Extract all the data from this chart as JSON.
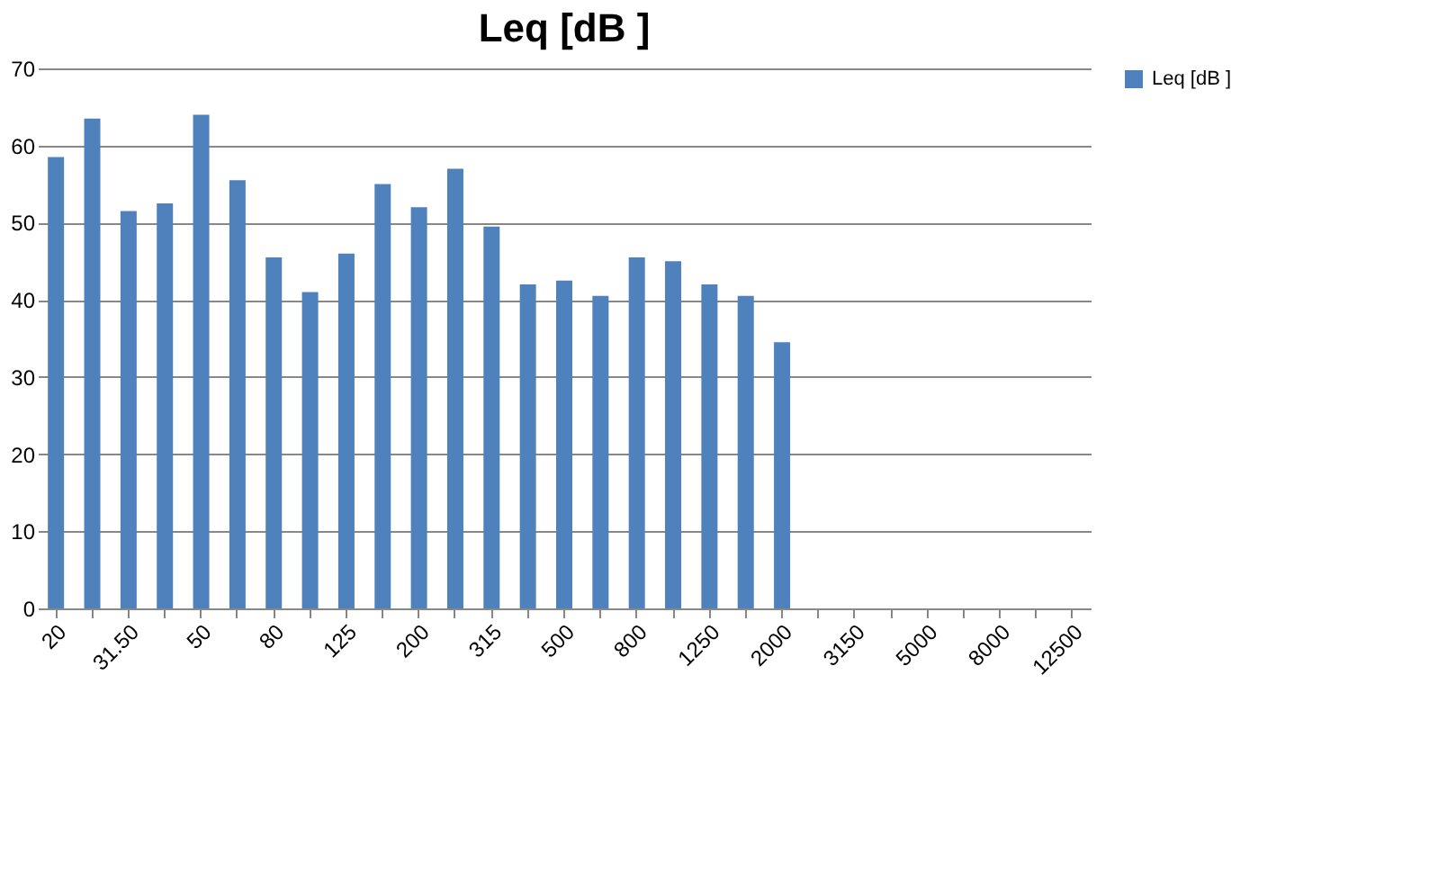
{
  "chart_data": {
    "type": "bar",
    "title": "Leq [dB ]",
    "categories": [
      "20",
      null,
      "31.50",
      null,
      "50",
      null,
      "80",
      null,
      "125",
      null,
      "200",
      null,
      "315",
      null,
      "500",
      null,
      "800",
      null,
      "1250",
      null,
      "2000",
      null,
      "3150",
      null,
      "5000",
      null,
      "8000",
      null,
      "12500"
    ],
    "series": [
      {
        "name": "Leq [dB ]",
        "color": "#4f81bd",
        "values": [
          58.5,
          63.5,
          51.5,
          52.5,
          64,
          55.5,
          45.5,
          41,
          46,
          55,
          52,
          57,
          49.5,
          42,
          42.5,
          40.5,
          45.5,
          45,
          42,
          40.5,
          34.5,
          null,
          null,
          null,
          null,
          null,
          null,
          null,
          null
        ]
      }
    ],
    "ylim": [
      0,
      70
    ],
    "yticks": [
      0,
      10,
      20,
      30,
      40,
      50,
      60,
      70
    ],
    "grid": "y",
    "legend": "right"
  }
}
